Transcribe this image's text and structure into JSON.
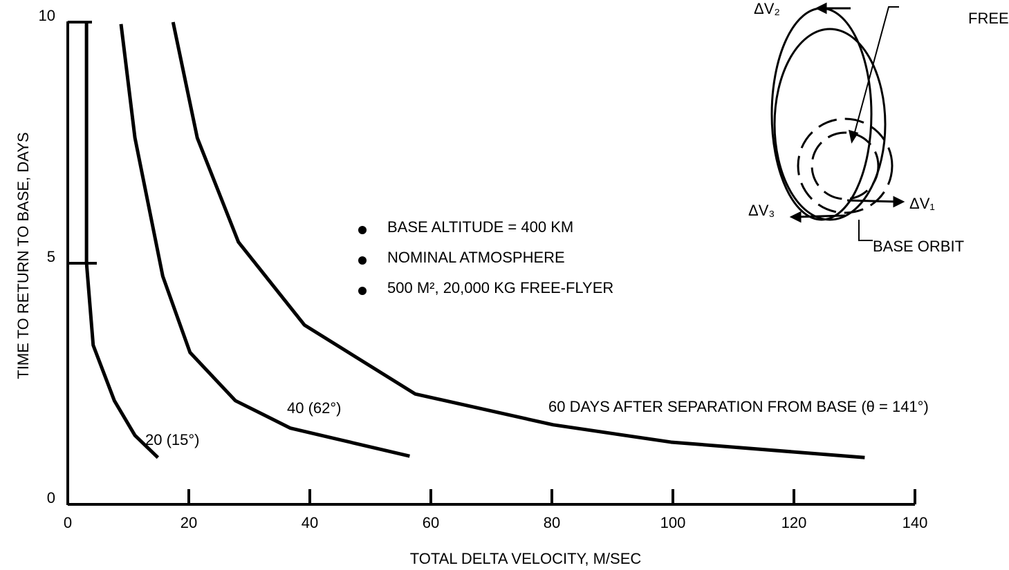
{
  "chart_data": {
    "type": "line",
    "xlabel": "TOTAL DELTA VELOCITY, M/SEC",
    "ylabel": "TIME TO RETURN TO BASE, DAYS",
    "xlim": [
      0,
      140
    ],
    "xticks": [
      0,
      20,
      40,
      60,
      80,
      100,
      120,
      140
    ],
    "ylim": [
      0,
      10
    ],
    "yticks": [
      0,
      5,
      10
    ],
    "series": [
      {
        "name": "20 (15°)",
        "color": "#000000",
        "x": [
          3.1,
          3.1,
          4.2,
          7.7,
          11.1,
          14.9
        ],
        "values": [
          10,
          5,
          3.3,
          2.15,
          1.43,
          0.97
        ]
      },
      {
        "name": "40 (62°)",
        "color": "#000000",
        "x": [
          8.8,
          11.1,
          15.7,
          20.2,
          27.7,
          36.8,
          56.5
        ],
        "values": [
          9.96,
          7.6,
          4.73,
          3.15,
          2.15,
          1.58,
          1.0
        ]
      },
      {
        "name": "60 DAYS AFTER SEPARATION FROM BASE (θ = 141°)",
        "color": "#000000",
        "x": [
          17.4,
          21.4,
          28.2,
          39.1,
          57.4,
          80.2,
          99.7,
          131.7
        ],
        "values": [
          10,
          7.6,
          5.44,
          3.72,
          2.29,
          1.65,
          1.29,
          0.97
        ]
      }
    ],
    "notes": [
      "BASE ALTITUDE = 400 KM",
      "NOMINAL ATMOSPHERE",
      "500 M², 20,000 KG FREE-FLYER"
    ],
    "diagram_labels": [
      "ΔV₂",
      "FREE-FLYER ORBIT",
      "ΔV₁",
      "ΔV₃",
      "BASE ORBIT"
    ]
  }
}
